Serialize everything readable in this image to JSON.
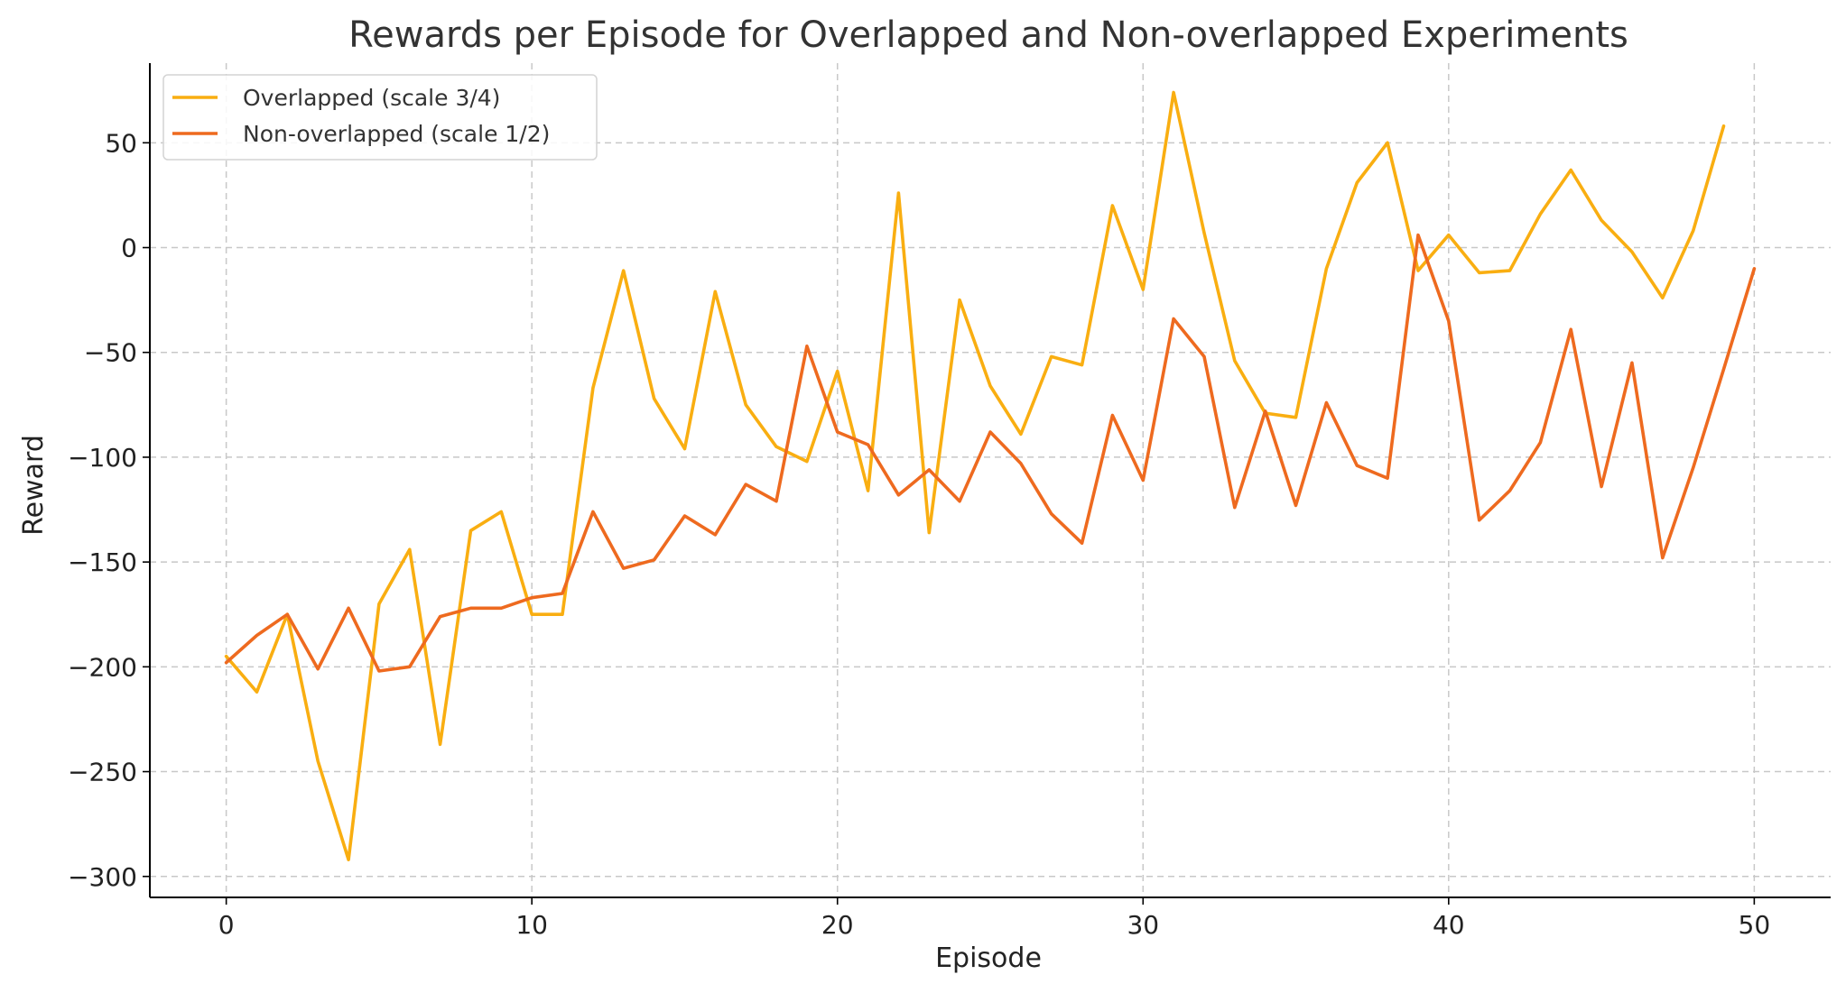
{
  "chart_data": {
    "type": "line",
    "title": "Rewards per Episode for Overlapped and Non-overlapped Experiments",
    "xlabel": "Episode",
    "ylabel": "Reward",
    "xlim": [
      -2.5,
      52.5
    ],
    "ylim": [
      -310,
      88
    ],
    "xticks": [
      0,
      10,
      20,
      30,
      40,
      50
    ],
    "yticks": [
      -300,
      -250,
      -200,
      -150,
      -100,
      -50,
      0,
      50
    ],
    "grid": true,
    "legend_position": "top-left",
    "series": [
      {
        "name": "Overlapped (scale 3/4)",
        "color": "#F9AE11",
        "x": [
          0,
          1,
          2,
          3,
          4,
          5,
          6,
          7,
          8,
          9,
          10,
          11,
          12,
          13,
          14,
          15,
          16,
          17,
          18,
          19,
          20,
          21,
          22,
          23,
          24,
          25,
          26,
          27,
          28,
          29,
          30,
          31,
          32,
          33,
          34,
          35,
          36,
          37,
          38,
          39,
          40,
          41,
          42,
          43,
          44,
          45,
          46,
          47,
          48,
          49
        ],
        "values": [
          -195,
          -212,
          -175,
          -245,
          -292,
          -170,
          -144,
          -237,
          -135,
          -126,
          -175,
          -175,
          -67,
          -11,
          -72,
          -96,
          -21,
          -75,
          -95,
          -102,
          -59,
          -116,
          26,
          -136,
          -25,
          -66,
          -89,
          -52,
          -56,
          20,
          -20,
          74,
          7,
          -54,
          -79,
          -81,
          -10,
          31,
          50,
          -11,
          6,
          -12,
          -11,
          16,
          37,
          13,
          -2,
          -24,
          8,
          58
        ]
      },
      {
        "name": "Non-overlapped (scale 1/2)",
        "color": "#EE6A1F",
        "x": [
          0,
          1,
          2,
          3,
          4,
          5,
          6,
          7,
          8,
          9,
          10,
          11,
          12,
          13,
          14,
          15,
          16,
          17,
          18,
          19,
          20,
          21,
          22,
          23,
          24,
          25,
          26,
          27,
          28,
          29,
          30,
          31,
          32,
          33,
          34,
          35,
          36,
          37,
          38,
          39,
          40,
          41,
          42,
          43,
          44,
          45,
          46,
          47,
          48,
          49,
          50
        ],
        "values": [
          -198,
          -185,
          -175,
          -201,
          -172,
          -202,
          -200,
          -176,
          -172,
          -172,
          -167,
          -165,
          -126,
          -153,
          -149,
          -128,
          -137,
          -113,
          -121,
          -47,
          -88,
          -94,
          -118,
          -106,
          -121,
          -88,
          -103,
          -127,
          -141,
          -80,
          -111,
          -34,
          -52,
          -124,
          -78,
          -123,
          -74,
          -104,
          -110,
          6,
          -35,
          -130,
          -116,
          -93,
          -39,
          -114,
          -55,
          -148,
          -105,
          -58,
          -10
        ]
      }
    ]
  }
}
